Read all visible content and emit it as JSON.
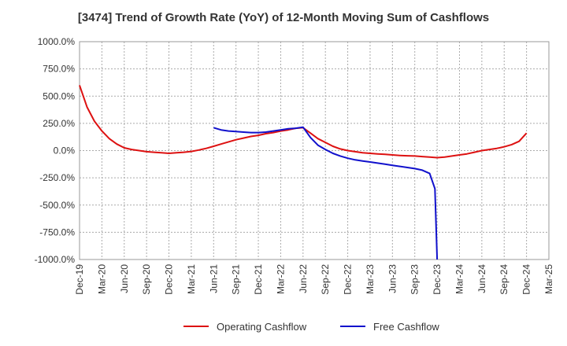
{
  "chart_data": {
    "type": "line",
    "title": "[3474]  Trend of Growth Rate (YoY) of 12-Month Moving Sum of Cashflows",
    "xlabel": "",
    "ylabel": "",
    "ylim": [
      -1000,
      1000
    ],
    "y_ticks": [
      "1000.0%",
      "750.0%",
      "500.0%",
      "250.0%",
      "0.0%",
      "-250.0%",
      "-500.0%",
      "-750.0%",
      "-1000.0%"
    ],
    "y_tick_values": [
      1000,
      750,
      500,
      250,
      0,
      -250,
      -500,
      -750,
      -1000
    ],
    "x_ticks": [
      "Dec-19",
      "Mar-20",
      "Jun-20",
      "Sep-20",
      "Dec-20",
      "Mar-21",
      "Jun-21",
      "Sep-21",
      "Dec-21",
      "Mar-22",
      "Jun-22",
      "Sep-22",
      "Dec-22",
      "Mar-23",
      "Jun-23",
      "Sep-23",
      "Dec-23",
      "Mar-24",
      "Jun-24",
      "Sep-24",
      "Dec-24",
      "Mar-25"
    ],
    "grid": true,
    "legend_position": "bottom",
    "series": [
      {
        "name": "Operating Cashflow",
        "color": "#dd1111",
        "x": [
          "Dec-19",
          "Jan-20",
          "Feb-20",
          "Mar-20",
          "Apr-20",
          "May-20",
          "Jun-20",
          "Jul-20",
          "Aug-20",
          "Sep-20",
          "Oct-20",
          "Nov-20",
          "Dec-20",
          "Jan-21",
          "Feb-21",
          "Mar-21",
          "Apr-21",
          "May-21",
          "Jun-21",
          "Jul-21",
          "Aug-21",
          "Sep-21",
          "Oct-21",
          "Nov-21",
          "Dec-21",
          "Jan-22",
          "Feb-22",
          "Mar-22",
          "Apr-22",
          "May-22",
          "Jun-22",
          "Jul-22",
          "Aug-22",
          "Sep-22",
          "Oct-22",
          "Nov-22",
          "Dec-22",
          "Jan-23",
          "Feb-23",
          "Mar-23",
          "Apr-23",
          "May-23",
          "Jun-23",
          "Jul-23",
          "Aug-23",
          "Sep-23",
          "Oct-23",
          "Nov-23",
          "Dec-23",
          "Jan-24",
          "Feb-24",
          "Mar-24",
          "Apr-24",
          "May-24",
          "Jun-24",
          "Jul-24",
          "Aug-24",
          "Sep-24",
          "Oct-24",
          "Nov-24",
          "Dec-24"
        ],
        "values": [
          600,
          400,
          270,
          180,
          110,
          60,
          25,
          10,
          0,
          -10,
          -15,
          -20,
          -25,
          -20,
          -15,
          -8,
          5,
          20,
          40,
          60,
          80,
          100,
          115,
          130,
          140,
          155,
          165,
          180,
          190,
          205,
          210,
          160,
          110,
          75,
          40,
          15,
          0,
          -10,
          -20,
          -25,
          -30,
          -35,
          -40,
          -45,
          -48,
          -50,
          -55,
          -60,
          -65,
          -60,
          -50,
          -40,
          -30,
          -15,
          0,
          10,
          20,
          35,
          55,
          85,
          160
        ]
      },
      {
        "name": "Free Cashflow",
        "color": "#1111cc",
        "x": [
          "Jun-21",
          "Jul-21",
          "Aug-21",
          "Sep-21",
          "Oct-21",
          "Nov-21",
          "Dec-21",
          "Jan-22",
          "Feb-22",
          "Mar-22",
          "Apr-22",
          "May-22",
          "Jun-22",
          "Jul-22",
          "Aug-22",
          "Sep-22",
          "Oct-22",
          "Nov-22",
          "Dec-22",
          "Jan-23",
          "Feb-23",
          "Mar-23",
          "Apr-23",
          "May-23",
          "Jun-23",
          "Jul-23",
          "Aug-23",
          "Sep-23",
          "Oct-23",
          "Nov-23",
          "Dec-23",
          "Dec-23"
        ],
        "values": [
          210,
          190,
          180,
          175,
          170,
          165,
          165,
          170,
          180,
          190,
          200,
          205,
          215,
          120,
          50,
          10,
          -25,
          -50,
          -70,
          -85,
          -95,
          -105,
          -115,
          -125,
          -135,
          -145,
          -155,
          -165,
          -180,
          -210,
          -350,
          -1000
        ],
        "x_end_offsets": [
          0,
          0,
          0,
          0,
          0,
          0,
          0,
          0,
          0,
          0,
          0,
          0,
          0,
          0,
          0,
          0,
          0,
          0,
          0,
          0,
          0,
          0,
          0,
          0,
          0,
          0,
          0,
          0,
          0,
          0,
          -0.3,
          0
        ]
      }
    ]
  }
}
